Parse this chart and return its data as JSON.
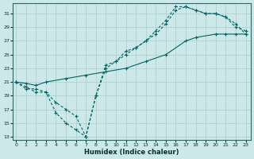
{
  "xlabel": "Humidex (Indice chaleur)",
  "bg_color": "#cce8e8",
  "grid_color": "#aacccc",
  "line_color": "#006666",
  "xlim": [
    -0.3,
    23.5
  ],
  "ylim": [
    12.5,
    32.5
  ],
  "xticks": [
    0,
    1,
    2,
    3,
    4,
    5,
    6,
    7,
    8,
    9,
    10,
    11,
    12,
    13,
    14,
    15,
    16,
    17,
    18,
    19,
    20,
    21,
    22,
    23
  ],
  "yticks": [
    13,
    15,
    17,
    19,
    21,
    23,
    25,
    27,
    29,
    31
  ],
  "line1_x": [
    0,
    1,
    2,
    3,
    4,
    5,
    6,
    7,
    8,
    9,
    10,
    11,
    12,
    13,
    14,
    15,
    16,
    17,
    18,
    19,
    20,
    21,
    22,
    23
  ],
  "line1_y": [
    21,
    20,
    20,
    19.5,
    18,
    17,
    16,
    13,
    19,
    23.5,
    24,
    25,
    26,
    27,
    28.5,
    30,
    32,
    32,
    31.5,
    31,
    31,
    30.5,
    29,
    28.5
  ],
  "line2_x": [
    0,
    1,
    2,
    3,
    4,
    5,
    6,
    7,
    8,
    9,
    10,
    11,
    12,
    13,
    14,
    15,
    16,
    17,
    18,
    19,
    20,
    21,
    22,
    23
  ],
  "line2_y": [
    21,
    20.3,
    19.5,
    19.5,
    16.5,
    15,
    14,
    13,
    19,
    23,
    24,
    25.5,
    26,
    27,
    28,
    29.5,
    31.5,
    32,
    31.5,
    31,
    31,
    30.5,
    29.5,
    28
  ],
  "line3_x": [
    0,
    1,
    2,
    3,
    5,
    7,
    9,
    11,
    13,
    15,
    17,
    18,
    20,
    21,
    22,
    23
  ],
  "line3_y": [
    21,
    20.8,
    20.5,
    21,
    21.5,
    22,
    22.5,
    23,
    24,
    25,
    27,
    27.5,
    28,
    28,
    28,
    28
  ]
}
